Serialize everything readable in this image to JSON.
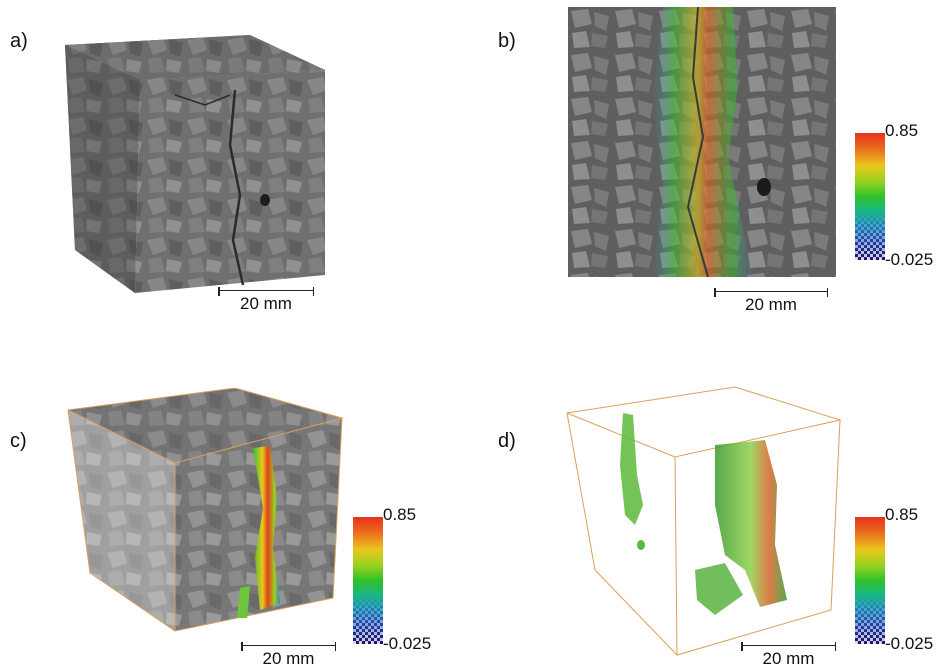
{
  "panels": {
    "a": {
      "label": "a)",
      "scale_label": "20 mm"
    },
    "b": {
      "label": "b)",
      "scale_label": "20 mm"
    },
    "c": {
      "label": "c)",
      "scale_label": "20 mm"
    },
    "d": {
      "label": "d)",
      "scale_label": "20 mm"
    }
  },
  "colorbar": {
    "max": "0.85",
    "min": "-0.025"
  },
  "colors": {
    "frame": "#d9a05b",
    "stone": "#7a7a7a",
    "crack": "#2e2e2e"
  }
}
